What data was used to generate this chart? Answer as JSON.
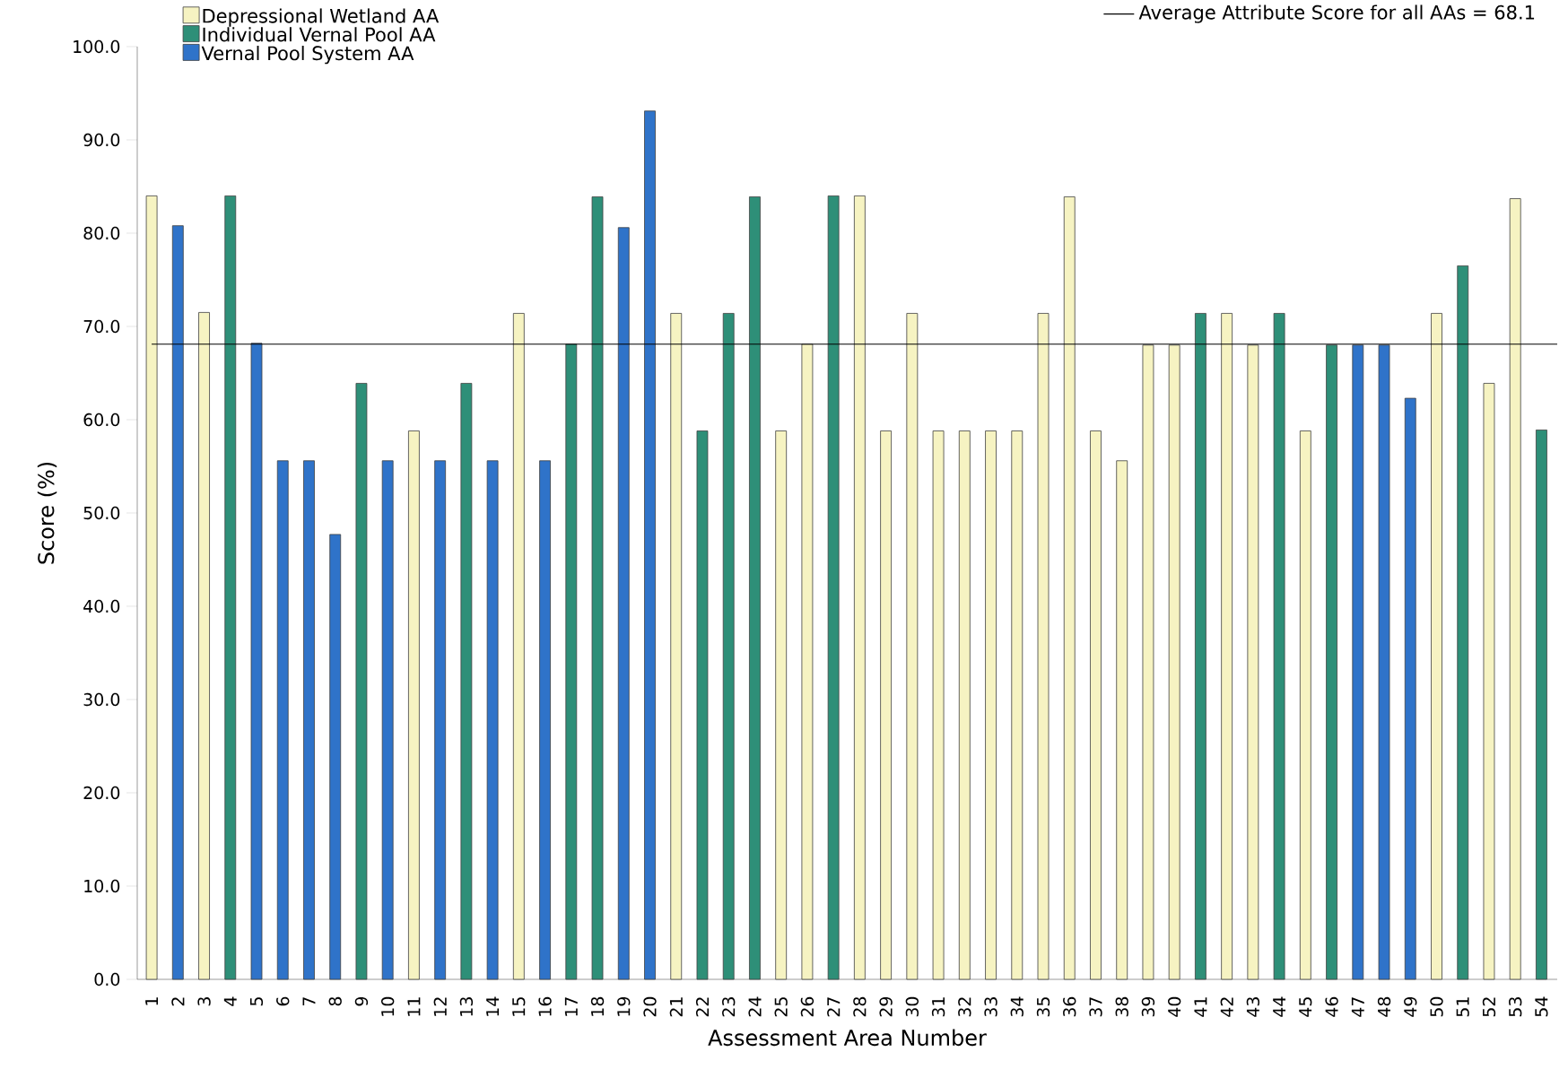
{
  "chart_data": {
    "type": "bar",
    "xlabel": "Assessment Area Number",
    "ylabel": "Score (%)",
    "categories": [
      "1",
      "2",
      "3",
      "4",
      "5",
      "6",
      "7",
      "8",
      "9",
      "10",
      "11",
      "12",
      "13",
      "14",
      "15",
      "16",
      "17",
      "18",
      "19",
      "20",
      "21",
      "22",
      "23",
      "24",
      "25",
      "26",
      "27",
      "28",
      "29",
      "30",
      "31",
      "32",
      "33",
      "34",
      "35",
      "36",
      "37",
      "38",
      "39",
      "40",
      "41",
      "42",
      "43",
      "44",
      "45",
      "46",
      "47",
      "48",
      "49",
      "50",
      "51",
      "52",
      "53",
      "54"
    ],
    "series": [
      {
        "name": "Depressional Wetland AA",
        "color": "#f6f3c2",
        "values": [
          84.0,
          null,
          71.5,
          null,
          null,
          null,
          null,
          null,
          null,
          null,
          58.8,
          null,
          null,
          null,
          71.4,
          null,
          null,
          null,
          null,
          null,
          71.4,
          null,
          null,
          null,
          58.8,
          68.1,
          null,
          84.0,
          58.8,
          71.4,
          58.8,
          58.8,
          58.8,
          58.8,
          71.4,
          83.9,
          58.8,
          55.6,
          68.0,
          68.0,
          null,
          71.4,
          68.0,
          null,
          58.8,
          null,
          null,
          null,
          null,
          71.4,
          null,
          63.9,
          83.7,
          null
        ]
      },
      {
        "name": "Individual Vernal Pool AA",
        "color": "#2e8f78",
        "values": [
          null,
          null,
          null,
          84.0,
          null,
          null,
          null,
          null,
          63.9,
          null,
          null,
          null,
          63.9,
          null,
          null,
          null,
          68.1,
          83.9,
          null,
          null,
          null,
          58.8,
          71.4,
          83.9,
          null,
          null,
          84.0,
          null,
          null,
          null,
          null,
          null,
          null,
          null,
          null,
          null,
          null,
          null,
          null,
          null,
          71.4,
          null,
          null,
          71.4,
          null,
          68.0,
          null,
          null,
          null,
          null,
          76.5,
          null,
          null,
          58.9
        ]
      },
      {
        "name": "Vernal Pool System AA",
        "color": "#2f73c9",
        "values": [
          null,
          80.8,
          null,
          null,
          68.2,
          55.6,
          55.6,
          47.7,
          null,
          55.6,
          null,
          55.6,
          null,
          55.6,
          null,
          55.6,
          null,
          null,
          80.6,
          93.1,
          null,
          null,
          null,
          null,
          null,
          null,
          null,
          null,
          null,
          null,
          null,
          null,
          null,
          null,
          null,
          null,
          null,
          null,
          null,
          null,
          null,
          null,
          null,
          null,
          null,
          null,
          68.0,
          68.0,
          62.3,
          null,
          null,
          null,
          null,
          null
        ]
      }
    ],
    "ylim": [
      0,
      100
    ],
    "yticks": [
      {
        "value": 0,
        "label": "0.0"
      },
      {
        "value": 10,
        "label": "10.0"
      },
      {
        "value": 20,
        "label": "20.0"
      },
      {
        "value": 30,
        "label": "30.0"
      },
      {
        "value": 40,
        "label": "40.0"
      },
      {
        "value": 50,
        "label": "50.0"
      },
      {
        "value": 60,
        "label": "60.0"
      },
      {
        "value": 70,
        "label": "70.0"
      },
      {
        "value": 80,
        "label": "80.0"
      },
      {
        "value": 90,
        "label": "90.0"
      },
      {
        "value": 100,
        "label": "100.0"
      }
    ],
    "ref_lines": [
      {
        "axis": "y",
        "value": 68.1,
        "label": "Average Attribute Score for all AAs = 68.1",
        "color": "#000000"
      }
    ],
    "legend": "top left",
    "grid": false
  }
}
